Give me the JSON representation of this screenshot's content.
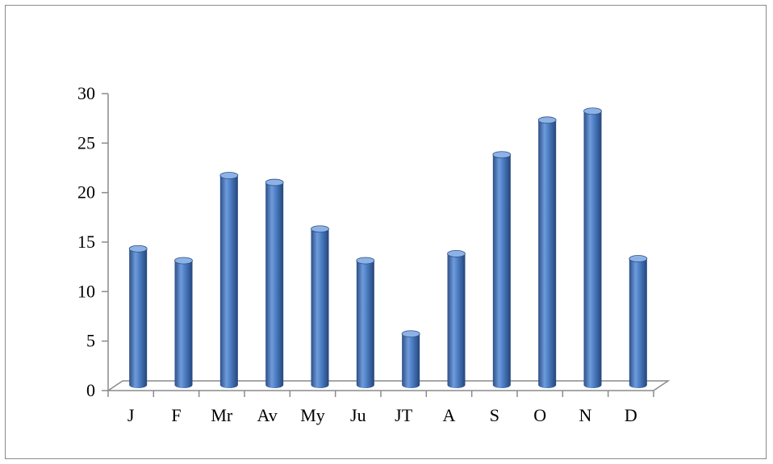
{
  "chart_data": {
    "type": "bar",
    "style": "3d-cylinder",
    "title": "",
    "xlabel": "",
    "ylabel": "",
    "categories": [
      "J",
      "F",
      "Mr",
      "Av",
      "My",
      "Ju",
      "JT",
      "A",
      "S",
      "O",
      "N",
      "D"
    ],
    "values": [
      14,
      12.8,
      21.4,
      20.7,
      16,
      12.8,
      5.4,
      13.5,
      23.5,
      27,
      27.9,
      13
    ],
    "ylim": [
      0,
      30
    ],
    "yticks": [
      0,
      5,
      10,
      15,
      20,
      25,
      30
    ],
    "grid": false,
    "legend": false,
    "colors": {
      "bar": "#4a7bc0",
      "bar_dark": "#2d4f86",
      "bar_light": "#8db2e6",
      "axis": "#8a8a8a"
    }
  }
}
